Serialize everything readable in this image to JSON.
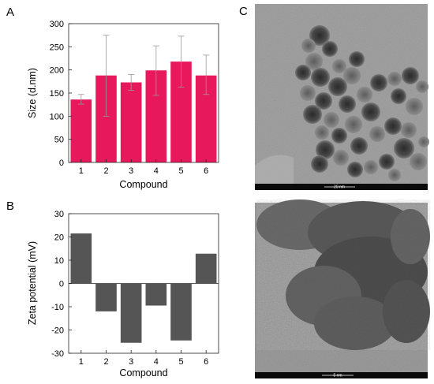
{
  "panel_labels": {
    "a": "A",
    "b": "B",
    "c": "C"
  },
  "chart_data": [
    {
      "panel": "A",
      "type": "bar",
      "categories": [
        "1",
        "2",
        "3",
        "4",
        "5",
        "6"
      ],
      "values": [
        136,
        188,
        173,
        199,
        218,
        188
      ],
      "error_low": [
        126,
        100,
        156,
        145,
        163,
        147
      ],
      "error_high": [
        147,
        275,
        190,
        252,
        273,
        232
      ],
      "xlabel": "Compound",
      "ylabel": "Size (d.nm)",
      "ylim": [
        0,
        300
      ],
      "yticks": [
        "0",
        "50",
        "100",
        "150",
        "200",
        "250",
        "300"
      ],
      "color": "#e8185c",
      "grid": false
    },
    {
      "panel": "B",
      "type": "bar",
      "categories": [
        "1",
        "2",
        "3",
        "4",
        "5",
        "6"
      ],
      "values": [
        21.5,
        -12,
        -25.5,
        -9.5,
        -24.5,
        12.8
      ],
      "xlabel": "Compound",
      "ylabel": "Zeta potential (mV)",
      "ylim": [
        -30,
        30
      ],
      "yticks": [
        "-30",
        "-20",
        "-10",
        "0",
        "10",
        "20",
        "30"
      ],
      "color": "#555555",
      "grid": false
    }
  ],
  "micrographs": [
    {
      "panel": "C",
      "scale_label": "20 nm"
    },
    {
      "panel": "C",
      "scale_label": "5 nm"
    }
  ]
}
